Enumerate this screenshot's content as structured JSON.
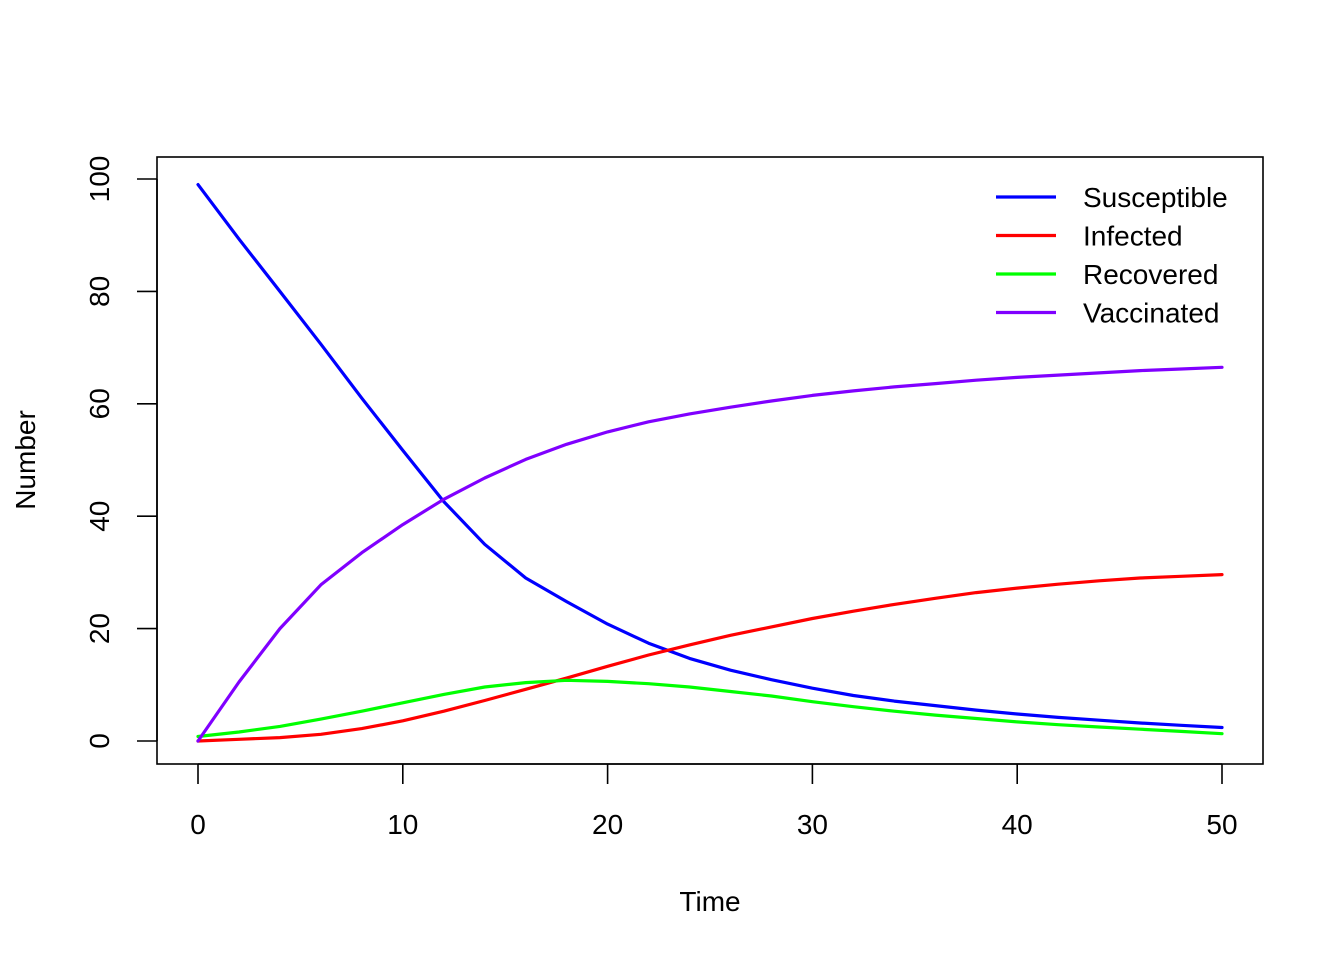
{
  "chart_data": {
    "type": "line",
    "title": "",
    "xlabel": "Time",
    "ylabel": "Number",
    "xlim": [
      0,
      50
    ],
    "ylim": [
      0,
      100
    ],
    "x_ticks": [
      0,
      10,
      20,
      30,
      40,
      50
    ],
    "y_ticks": [
      0,
      20,
      40,
      60,
      80,
      100
    ],
    "grid": false,
    "legend_position": "top-right",
    "x": [
      0,
      2,
      4,
      6,
      8,
      10,
      12,
      14,
      16,
      18,
      20,
      22,
      24,
      26,
      28,
      30,
      32,
      34,
      36,
      38,
      40,
      42,
      44,
      46,
      48,
      50
    ],
    "series": [
      {
        "name": "Susceptible",
        "color": "#0000ff",
        "values": [
          99,
          89.3,
          80.0,
          70.6,
          61.0,
          51.7,
          42.6,
          35.0,
          29.0,
          24.8,
          20.8,
          17.4,
          14.7,
          12.6,
          10.9,
          9.4,
          8.1,
          7.1,
          6.3,
          5.5,
          4.8,
          4.2,
          3.7,
          3.2,
          2.8,
          2.4
        ]
      },
      {
        "name": "Infected",
        "color": "#ff0000",
        "values": [
          0,
          0.3,
          0.6,
          1.2,
          2.2,
          3.6,
          5.3,
          7.2,
          9.2,
          11.2,
          13.3,
          15.3,
          17.1,
          18.8,
          20.3,
          21.8,
          23.1,
          24.3,
          25.4,
          26.4,
          27.2,
          27.9,
          28.5,
          29.0,
          29.3,
          29.6
        ]
      },
      {
        "name": "Recovered",
        "color": "#00ff00",
        "values": [
          0.8,
          1.6,
          2.6,
          3.9,
          5.3,
          6.8,
          8.3,
          9.6,
          10.4,
          10.8,
          10.6,
          10.2,
          9.6,
          8.8,
          8.0,
          7.0,
          6.1,
          5.3,
          4.6,
          4.0,
          3.4,
          2.9,
          2.5,
          2.1,
          1.7,
          1.3
        ]
      },
      {
        "name": "Vaccinated",
        "color": "#8000ff",
        "values": [
          0,
          10.5,
          20.0,
          27.8,
          33.5,
          38.5,
          43.0,
          46.8,
          50.1,
          52.8,
          55.0,
          56.8,
          58.2,
          59.4,
          60.5,
          61.5,
          62.3,
          63.0,
          63.6,
          64.2,
          64.7,
          65.1,
          65.5,
          65.9,
          66.2,
          66.5
        ]
      }
    ]
  }
}
